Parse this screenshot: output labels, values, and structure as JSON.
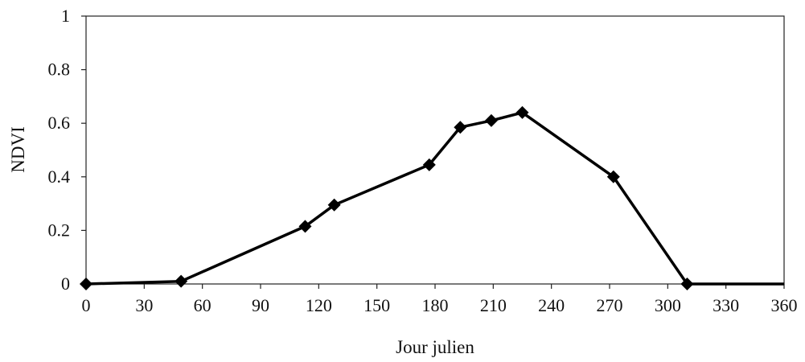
{
  "chart_data": {
    "type": "line",
    "title": "",
    "xlabel": "Jour julien",
    "ylabel": "NDVI",
    "xlim": [
      0,
      360
    ],
    "ylim": [
      0,
      1
    ],
    "x_ticks": [
      0,
      30,
      60,
      90,
      120,
      150,
      180,
      210,
      240,
      270,
      300,
      330,
      360
    ],
    "y_ticks": [
      0,
      0.2,
      0.4,
      0.6,
      0.8,
      1
    ],
    "x_tick_labels": [
      "0",
      "30",
      "60",
      "90",
      "120",
      "150",
      "180",
      "210",
      "240",
      "270",
      "300",
      "330",
      "360"
    ],
    "y_tick_labels": [
      "0",
      "0.2",
      "0.4",
      "0.6",
      "0.8",
      "1"
    ],
    "grid": false,
    "legend": "none",
    "marker": "diamond",
    "line_color": "#000000",
    "series": [
      {
        "x": [
          0,
          49,
          113,
          128,
          177,
          193,
          209,
          225,
          272,
          310,
          360
        ],
        "y": [
          0,
          0.01,
          0.215,
          0.295,
          0.445,
          0.585,
          0.61,
          0.64,
          0.4,
          0,
          0
        ],
        "markers": [
          true,
          true,
          true,
          true,
          true,
          true,
          true,
          true,
          true,
          true,
          false
        ]
      }
    ]
  }
}
